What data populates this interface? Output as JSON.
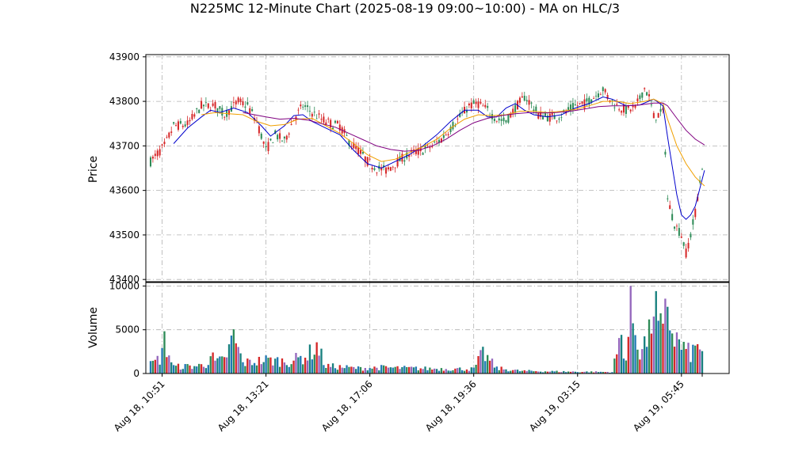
{
  "chart_data": {
    "type": "candlestick",
    "title": "N225MC 12-Minute Chart (2025-08-19 09:00~10:00) - MA on HLC/3",
    "price_panel": {
      "ylabel": "Price",
      "ylim": [
        43395,
        43905
      ],
      "yticks": [
        43400,
        43500,
        43600,
        43700,
        43800,
        43900
      ],
      "grid": true
    },
    "volume_panel": {
      "ylabel": "Volume",
      "ylim": [
        0,
        10400
      ],
      "yticks": [
        0,
        5000,
        10000
      ],
      "grid": true
    },
    "x_tick_labels": [
      "Aug 18, 10:51",
      "Aug 18, 13:21",
      "Aug 18, 17:06",
      "Aug 18, 19:36",
      "Aug 19, 03:15",
      "Aug 19, 05:45"
    ],
    "candle_count": 240,
    "price_path_hlc3": [
      [
        0,
        43665
      ],
      [
        6,
        43700
      ],
      [
        10,
        43745
      ],
      [
        16,
        43748
      ],
      [
        22,
        43790
      ],
      [
        28,
        43790
      ],
      [
        32,
        43770
      ],
      [
        38,
        43800
      ],
      [
        42,
        43790
      ],
      [
        46,
        43755
      ],
      [
        50,
        43690
      ],
      [
        54,
        43725
      ],
      [
        58,
        43710
      ],
      [
        62,
        43760
      ],
      [
        66,
        43790
      ],
      [
        70,
        43775
      ],
      [
        74,
        43760
      ],
      [
        78,
        43750
      ],
      [
        82,
        43745
      ],
      [
        86,
        43710
      ],
      [
        90,
        43690
      ],
      [
        94,
        43665
      ],
      [
        98,
        43650
      ],
      [
        102,
        43645
      ],
      [
        106,
        43660
      ],
      [
        110,
        43675
      ],
      [
        114,
        43685
      ],
      [
        118,
        43690
      ],
      [
        122,
        43700
      ],
      [
        126,
        43715
      ],
      [
        130,
        43740
      ],
      [
        134,
        43765
      ],
      [
        138,
        43790
      ],
      [
        142,
        43795
      ],
      [
        146,
        43780
      ],
      [
        150,
        43760
      ],
      [
        154,
        43755
      ],
      [
        158,
        43785
      ],
      [
        162,
        43810
      ],
      [
        164,
        43800
      ],
      [
        168,
        43770
      ],
      [
        172,
        43765
      ],
      [
        176,
        43765
      ],
      [
        180,
        43775
      ],
      [
        184,
        43790
      ],
      [
        188,
        43795
      ],
      [
        192,
        43810
      ],
      [
        196,
        43828
      ],
      [
        198,
        43810
      ],
      [
        202,
        43790
      ],
      [
        206,
        43780
      ],
      [
        210,
        43785
      ],
      [
        214,
        43830
      ],
      [
        216,
        43810
      ],
      [
        218,
        43765
      ],
      [
        222,
        43775
      ],
      [
        223,
        43690
      ],
      [
        224,
        43580
      ],
      [
        227,
        43525
      ],
      [
        230,
        43500
      ],
      [
        232,
        43460
      ],
      [
        234,
        43500
      ],
      [
        236,
        43550
      ],
      [
        238,
        43620
      ],
      [
        240,
        43690
      ],
      [
        243,
        43710
      ]
    ],
    "volume_profile": [
      [
        0,
        1200
      ],
      [
        4,
        2000
      ],
      [
        6,
        4200
      ],
      [
        10,
        900
      ],
      [
        20,
        1000
      ],
      [
        24,
        1200
      ],
      [
        26,
        2500
      ],
      [
        28,
        1500
      ],
      [
        32,
        1800
      ],
      [
        36,
        4900
      ],
      [
        40,
        1400
      ],
      [
        50,
        1800
      ],
      [
        60,
        1600
      ],
      [
        68,
        2400
      ],
      [
        72,
        3700
      ],
      [
        76,
        1000
      ],
      [
        90,
        700
      ],
      [
        100,
        800
      ],
      [
        120,
        650
      ],
      [
        140,
        600
      ],
      [
        144,
        2700
      ],
      [
        150,
        700
      ],
      [
        160,
        350
      ],
      [
        180,
        250
      ],
      [
        200,
        200
      ],
      [
        204,
        5200
      ],
      [
        206,
        1800
      ],
      [
        208,
        8600
      ],
      [
        212,
        3000
      ],
      [
        216,
        5000
      ],
      [
        218,
        9900
      ],
      [
        220,
        6400
      ],
      [
        222,
        5100
      ],
      [
        224,
        9700
      ],
      [
        226,
        5400
      ],
      [
        230,
        3600
      ],
      [
        234,
        2600
      ],
      [
        238,
        3900
      ],
      [
        242,
        1300
      ]
    ],
    "series": [
      {
        "name": "MA short",
        "color": "#0000cc",
        "values": [
          [
            10,
            43705
          ],
          [
            16,
            43740
          ],
          [
            22,
            43765
          ],
          [
            26,
            43780
          ],
          [
            30,
            43775
          ],
          [
            36,
            43785
          ],
          [
            42,
            43775
          ],
          [
            48,
            43745
          ],
          [
            52,
            43722
          ],
          [
            58,
            43745
          ],
          [
            62,
            43768
          ],
          [
            66,
            43770
          ],
          [
            70,
            43755
          ],
          [
            76,
            43740
          ],
          [
            82,
            43725
          ],
          [
            88,
            43690
          ],
          [
            94,
            43660
          ],
          [
            100,
            43650
          ],
          [
            106,
            43665
          ],
          [
            112,
            43680
          ],
          [
            118,
            43700
          ],
          [
            124,
            43725
          ],
          [
            130,
            43755
          ],
          [
            136,
            43780
          ],
          [
            142,
            43780
          ],
          [
            146,
            43765
          ],
          [
            150,
            43765
          ],
          [
            154,
            43785
          ],
          [
            158,
            43795
          ],
          [
            162,
            43780
          ],
          [
            166,
            43770
          ],
          [
            172,
            43765
          ],
          [
            178,
            43770
          ],
          [
            184,
            43785
          ],
          [
            190,
            43795
          ],
          [
            196,
            43810
          ],
          [
            200,
            43805
          ],
          [
            206,
            43790
          ],
          [
            212,
            43792
          ],
          [
            218,
            43805
          ],
          [
            222,
            43790
          ],
          [
            224,
            43720
          ],
          [
            226,
            43655
          ],
          [
            228,
            43590
          ],
          [
            230,
            43545
          ],
          [
            232,
            43535
          ],
          [
            234,
            43545
          ],
          [
            236,
            43565
          ],
          [
            238,
            43605
          ],
          [
            240,
            43645
          ]
        ]
      },
      {
        "name": "MA medium",
        "color": "#f0a000",
        "values": [
          [
            22,
            43770
          ],
          [
            28,
            43775
          ],
          [
            34,
            43772
          ],
          [
            40,
            43770
          ],
          [
            46,
            43755
          ],
          [
            52,
            43745
          ],
          [
            58,
            43748
          ],
          [
            64,
            43760
          ],
          [
            70,
            43762
          ],
          [
            76,
            43745
          ],
          [
            82,
            43728
          ],
          [
            88,
            43705
          ],
          [
            94,
            43680
          ],
          [
            100,
            43665
          ],
          [
            106,
            43670
          ],
          [
            112,
            43685
          ],
          [
            118,
            43698
          ],
          [
            124,
            43715
          ],
          [
            130,
            43740
          ],
          [
            136,
            43760
          ],
          [
            142,
            43770
          ],
          [
            148,
            43768
          ],
          [
            154,
            43770
          ],
          [
            160,
            43778
          ],
          [
            166,
            43778
          ],
          [
            172,
            43775
          ],
          [
            178,
            43778
          ],
          [
            184,
            43782
          ],
          [
            190,
            43790
          ],
          [
            196,
            43800
          ],
          [
            202,
            43800
          ],
          [
            208,
            43795
          ],
          [
            214,
            43800
          ],
          [
            218,
            43805
          ],
          [
            222,
            43795
          ],
          [
            224,
            43760
          ],
          [
            228,
            43700
          ],
          [
            232,
            43660
          ],
          [
            236,
            43630
          ],
          [
            240,
            43610
          ]
        ]
      },
      {
        "name": "MA long",
        "color": "#800080",
        "values": [
          [
            40,
            43775
          ],
          [
            50,
            43765
          ],
          [
            56,
            43760
          ],
          [
            62,
            43762
          ],
          [
            68,
            43758
          ],
          [
            74,
            43750
          ],
          [
            80,
            43742
          ],
          [
            86,
            43728
          ],
          [
            92,
            43714
          ],
          [
            98,
            43700
          ],
          [
            104,
            43692
          ],
          [
            110,
            43688
          ],
          [
            116,
            43690
          ],
          [
            122,
            43700
          ],
          [
            128,
            43715
          ],
          [
            134,
            43735
          ],
          [
            140,
            43752
          ],
          [
            146,
            43762
          ],
          [
            152,
            43768
          ],
          [
            158,
            43772
          ],
          [
            164,
            43775
          ],
          [
            170,
            43774
          ],
          [
            176,
            43775
          ],
          [
            182,
            43778
          ],
          [
            188,
            43783
          ],
          [
            194,
            43788
          ],
          [
            200,
            43790
          ],
          [
            206,
            43790
          ],
          [
            212,
            43792
          ],
          [
            218,
            43796
          ],
          [
            222,
            43796
          ],
          [
            224,
            43790
          ],
          [
            228,
            43762
          ],
          [
            232,
            43735
          ],
          [
            236,
            43715
          ],
          [
            240,
            43702
          ]
        ]
      }
    ],
    "up_color": "#2e8b57",
    "down_color": "#d62728",
    "volume_colors": [
      "#1f77b4",
      "#2e8b57",
      "#d62728",
      "#9467bd",
      "#17807e"
    ]
  }
}
